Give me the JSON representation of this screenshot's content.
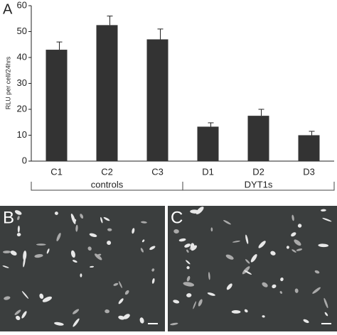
{
  "chart_data": {
    "type": "bar",
    "panel_label": "A",
    "y_label": "RLU per cell/24hrs",
    "categories": [
      "C1",
      "C2",
      "C3",
      "D1",
      "D2",
      "D3"
    ],
    "values": [
      43,
      52.5,
      47,
      13.3,
      17.5,
      10
    ],
    "errors": [
      3,
      3.5,
      4,
      1.5,
      2.5,
      1.5
    ],
    "color": "#333333",
    "ylim": [
      0,
      60
    ],
    "yticks": [
      0,
      10,
      20,
      30,
      40,
      50,
      60
    ],
    "grid": false,
    "groups": [
      {
        "label": "controls",
        "start": 0,
        "end": 2
      },
      {
        "label": "DYT1s",
        "start": 3,
        "end": 5
      }
    ]
  },
  "panels": [
    {
      "label": "B"
    },
    {
      "label": "C"
    }
  ]
}
